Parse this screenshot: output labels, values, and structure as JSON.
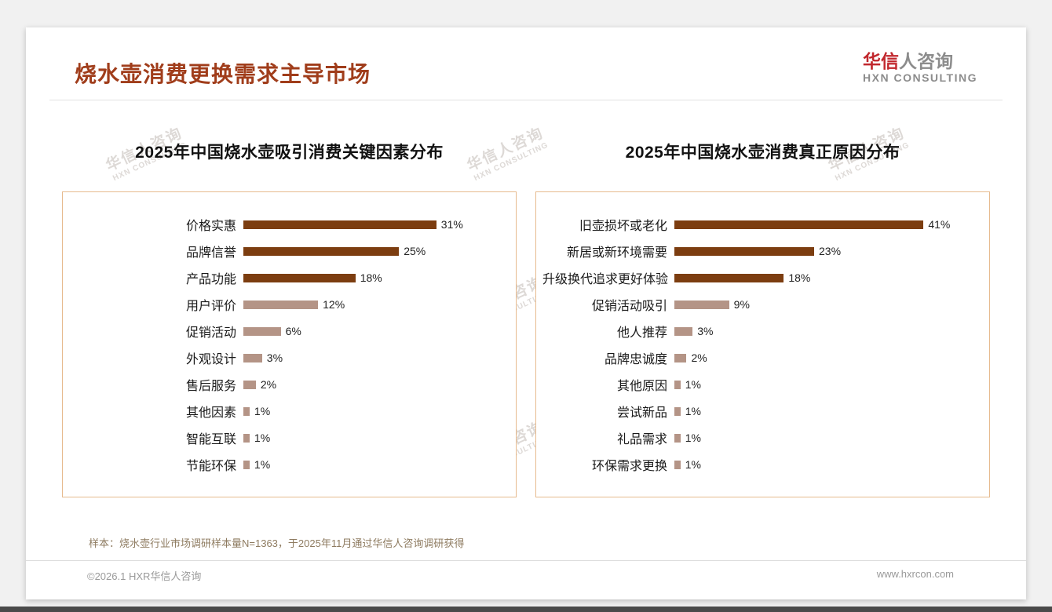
{
  "page": {
    "title": "烧水壶消费更换需求主导市场",
    "note": "样本：烧水壶行业市场调研样本量N=1363，于2025年11月通过华信人咨询调研获得",
    "footer_left": "©2026.1 HXR华信人咨询",
    "footer_right": "www.hxrcon.com"
  },
  "logo": {
    "cn_accent": "华信",
    "cn_rest": "人咨询",
    "en": "HXN CONSULTING"
  },
  "watermark": {
    "cn": "华信人咨询",
    "en": "HXN CONSULTING"
  },
  "colors": {
    "title": "#A03D1B",
    "bar_dark": "#7C3D10",
    "bar_light": "#B49486",
    "chart_border": "#E6BA8E",
    "logo_red": "#C1272D",
    "logo_gray": "#8C8C8C"
  },
  "chart_data": [
    {
      "type": "bar",
      "orientation": "horizontal",
      "title": "2025年中国烧水壶吸引消费关键因素分布",
      "categories": [
        "价格实惠",
        "品牌信誉",
        "产品功能",
        "用户评价",
        "促销活动",
        "外观设计",
        "售后服务",
        "其他因素",
        "智能互联",
        "节能环保"
      ],
      "values": [
        31,
        25,
        18,
        12,
        6,
        3,
        2,
        1,
        1,
        1
      ],
      "unit": "%",
      "xlim": [
        0,
        42
      ],
      "dark_bars": 3,
      "grid": false,
      "value_labels": true
    },
    {
      "type": "bar",
      "orientation": "horizontal",
      "title": "2025年中国烧水壶消费真正原因分布",
      "categories": [
        "旧壶损坏或老化",
        "新居或新环境需要",
        "升级换代追求更好体验",
        "促销活动吸引",
        "他人推荐",
        "品牌忠诚度",
        "其他原因",
        "尝试新品",
        "礼品需求",
        "环保需求更换"
      ],
      "values": [
        41,
        23,
        18,
        9,
        3,
        2,
        1,
        1,
        1,
        1
      ],
      "unit": "%",
      "xlim": [
        0,
        50
      ],
      "dark_bars": 3,
      "grid": false,
      "value_labels": true
    }
  ]
}
